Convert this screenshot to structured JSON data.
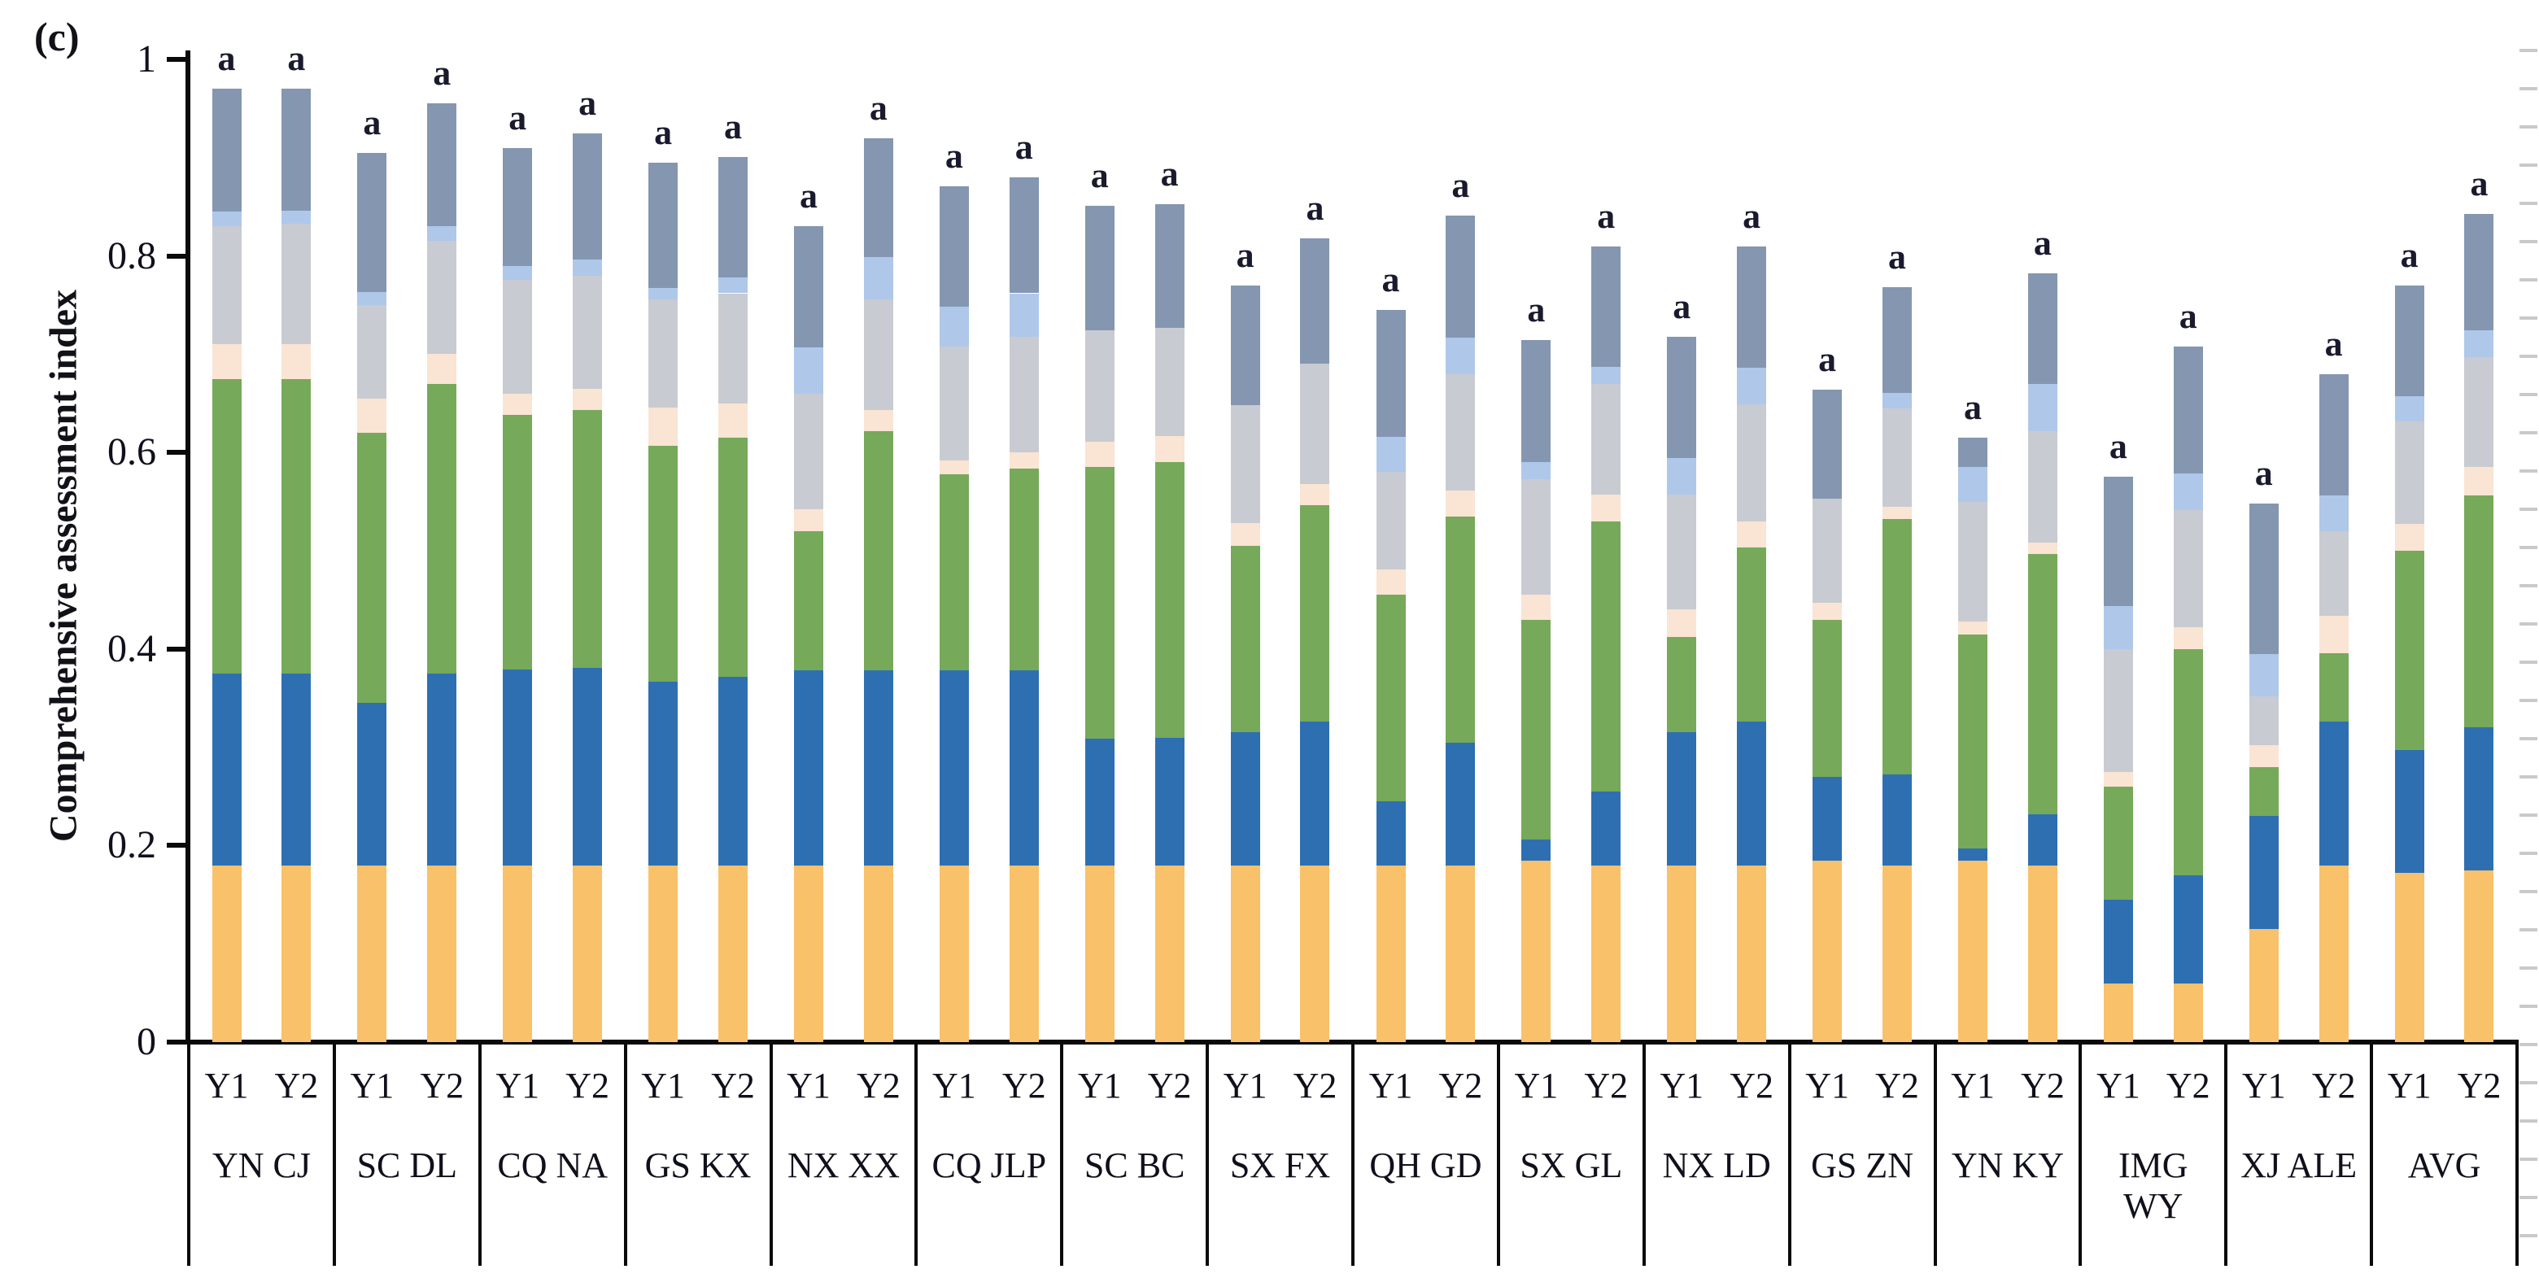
{
  "panel_label": "(c)",
  "y_axis": {
    "label": "Comprehensive assessment index",
    "ticks": [
      "1",
      "0.8",
      "0.6",
      "0.4",
      "0.2",
      "0"
    ],
    "tick_values": [
      1,
      0.8,
      0.6,
      0.4,
      0.2,
      0
    ],
    "min": 0,
    "max": 1
  },
  "colors": {
    "orange": "#F9C169",
    "blue": "#2E6FB2",
    "green": "#76A95A",
    "peach": "#FAE4D3",
    "gray": "#C8CBD1",
    "light_blue": "#AFC7E9",
    "slate_blue": "#8496B0",
    "axis": "#0a0a0a",
    "text": "#10101c"
  },
  "chart_data": {
    "type": "bar",
    "subtype": "stacked",
    "title": "(c)",
    "xlabel": "",
    "ylabel": "Comprehensive assessment index",
    "ylim": [
      0,
      1
    ],
    "grid": false,
    "legend": "none visible (cropped)",
    "stack_order": [
      "orange",
      "blue",
      "green",
      "peach",
      "gray",
      "light_blue",
      "slate_blue"
    ],
    "x_sublabels": [
      "Y1",
      "Y2"
    ],
    "note": "cum = cumulative stack boundaries (top of each segment, bottom-to-top) read from axis; annotation letter shown above every bar",
    "groups": [
      {
        "name": "YN CJ",
        "bars": [
          {
            "label": "Y1",
            "annotation": "a",
            "cum": [
              0.18,
              0.375,
              0.675,
              0.71,
              0.83,
              0.845,
              0.97
            ]
          },
          {
            "label": "Y2",
            "annotation": "a",
            "cum": [
              0.18,
              0.375,
              0.675,
              0.71,
              0.833,
              0.846,
              0.97
            ]
          }
        ]
      },
      {
        "name": "SC DL",
        "bars": [
          {
            "label": "Y1",
            "annotation": "a",
            "cum": [
              0.18,
              0.345,
              0.62,
              0.655,
              0.75,
              0.763,
              0.905
            ]
          },
          {
            "label": "Y2",
            "annotation": "a",
            "cum": [
              0.18,
              0.375,
              0.67,
              0.7,
              0.815,
              0.83,
              0.955
            ]
          }
        ]
      },
      {
        "name": "CQ NA",
        "bars": [
          {
            "label": "Y1",
            "annotation": "a",
            "cum": [
              0.18,
              0.379,
              0.638,
              0.66,
              0.776,
              0.79,
              0.91
            ]
          },
          {
            "label": "Y2",
            "annotation": "a",
            "cum": [
              0.18,
              0.381,
              0.643,
              0.665,
              0.78,
              0.796,
              0.925
            ]
          }
        ]
      },
      {
        "name": "GS KX",
        "bars": [
          {
            "label": "Y1",
            "annotation": "a",
            "cum": [
              0.18,
              0.367,
              0.607,
              0.646,
              0.756,
              0.767,
              0.895
            ]
          },
          {
            "label": "Y2",
            "annotation": "a",
            "cum": [
              0.18,
              0.372,
              0.615,
              0.65,
              0.762,
              0.778,
              0.901
            ]
          }
        ]
      },
      {
        "name": "NX XX",
        "bars": [
          {
            "label": "Y1",
            "annotation": "a",
            "cum": [
              0.18,
              0.378,
              0.52,
              0.542,
              0.66,
              0.707,
              0.83
            ]
          },
          {
            "label": "Y2",
            "annotation": "a",
            "cum": [
              0.18,
              0.378,
              0.622,
              0.643,
              0.756,
              0.799,
              0.92
            ]
          }
        ]
      },
      {
        "name": "CQ JLP",
        "bars": [
          {
            "label": "Y1",
            "annotation": "a",
            "cum": [
              0.18,
              0.378,
              0.578,
              0.592,
              0.708,
              0.748,
              0.871
            ]
          },
          {
            "label": "Y2",
            "annotation": "a",
            "cum": [
              0.18,
              0.378,
              0.584,
              0.6,
              0.718,
              0.762,
              0.88
            ]
          }
        ]
      },
      {
        "name": "SC BC",
        "bars": [
          {
            "label": "Y1",
            "annotation": "a",
            "cum": [
              0.18,
              0.309,
              0.585,
              0.611,
              0.724,
              0.724,
              0.851
            ]
          },
          {
            "label": "Y2",
            "annotation": "a",
            "cum": [
              0.18,
              0.31,
              0.59,
              0.617,
              0.727,
              0.727,
              0.853
            ]
          }
        ]
      },
      {
        "name": "SX FX",
        "bars": [
          {
            "label": "Y1",
            "annotation": "a",
            "cum": [
              0.18,
              0.315,
              0.505,
              0.528,
              0.648,
              0.648,
              0.77
            ]
          },
          {
            "label": "Y2",
            "annotation": "a",
            "cum": [
              0.18,
              0.326,
              0.546,
              0.568,
              0.69,
              0.69,
              0.818
            ]
          }
        ]
      },
      {
        "name": "QH GD",
        "bars": [
          {
            "label": "Y1",
            "annotation": "a",
            "cum": [
              0.18,
              0.245,
              0.455,
              0.481,
              0.58,
              0.616,
              0.745
            ]
          },
          {
            "label": "Y2",
            "annotation": "a",
            "cum": [
              0.18,
              0.305,
              0.535,
              0.561,
              0.68,
              0.717,
              0.841
            ]
          }
        ]
      },
      {
        "name": "SX GL",
        "bars": [
          {
            "label": "Y1",
            "annotation": "a",
            "cum": [
              0.185,
              0.206,
              0.43,
              0.455,
              0.573,
              0.59,
              0.714
            ]
          },
          {
            "label": "Y2",
            "annotation": "a",
            "cum": [
              0.18,
              0.255,
              0.53,
              0.557,
              0.67,
              0.687,
              0.81
            ]
          }
        ]
      },
      {
        "name": "NX LD",
        "bars": [
          {
            "label": "Y1",
            "annotation": "a",
            "cum": [
              0.18,
              0.315,
              0.412,
              0.44,
              0.557,
              0.594,
              0.718
            ]
          },
          {
            "label": "Y2",
            "annotation": "a",
            "cum": [
              0.18,
              0.326,
              0.503,
              0.53,
              0.649,
              0.686,
              0.81
            ]
          }
        ]
      },
      {
        "name": "GS ZN",
        "bars": [
          {
            "label": "Y1",
            "annotation": "a",
            "cum": [
              0.185,
              0.27,
              0.43,
              0.447,
              0.553,
              0.553,
              0.664
            ]
          },
          {
            "label": "Y2",
            "annotation": "a",
            "cum": [
              0.18,
              0.272,
              0.532,
              0.545,
              0.645,
              0.661,
              0.768
            ]
          }
        ]
      },
      {
        "name": "YN KY",
        "bars": [
          {
            "label": "Y1",
            "annotation": "a",
            "cum": [
              0.185,
              0.197,
              0.415,
              0.428,
              0.55,
              0.585,
              0.615
            ]
          },
          {
            "label": "Y2",
            "annotation": "a",
            "cum": [
              0.18,
              0.232,
              0.497,
              0.508,
              0.622,
              0.67,
              0.782
            ]
          }
        ]
      },
      {
        "name": "IMG\nWY",
        "bars": [
          {
            "label": "Y1",
            "annotation": "a",
            "cum": [
              0.06,
              0.145,
              0.26,
              0.275,
              0.4,
              0.444,
              0.575
            ]
          },
          {
            "label": "Y2",
            "annotation": "a",
            "cum": [
              0.06,
              0.17,
              0.4,
              0.422,
              0.541,
              0.579,
              0.708
            ]
          }
        ]
      },
      {
        "name": "XJ ALE",
        "bars": [
          {
            "label": "Y1",
            "annotation": "a",
            "cum": [
              0.115,
              0.23,
              0.28,
              0.302,
              0.352,
              0.395,
              0.548
            ]
          },
          {
            "label": "Y2",
            "annotation": "a",
            "cum": [
              0.18,
              0.326,
              0.396,
              0.434,
              0.52,
              0.556,
              0.68
            ]
          }
        ]
      },
      {
        "name": "AVG",
        "bars": [
          {
            "label": "Y1",
            "annotation": "a",
            "cum": [
              0.172,
              0.297,
              0.5,
              0.527,
              0.632,
              0.657,
              0.77
            ]
          },
          {
            "label": "Y2",
            "annotation": "a",
            "cum": [
              0.175,
              0.32,
              0.556,
              0.585,
              0.697,
              0.724,
              0.843
            ]
          }
        ]
      }
    ]
  }
}
